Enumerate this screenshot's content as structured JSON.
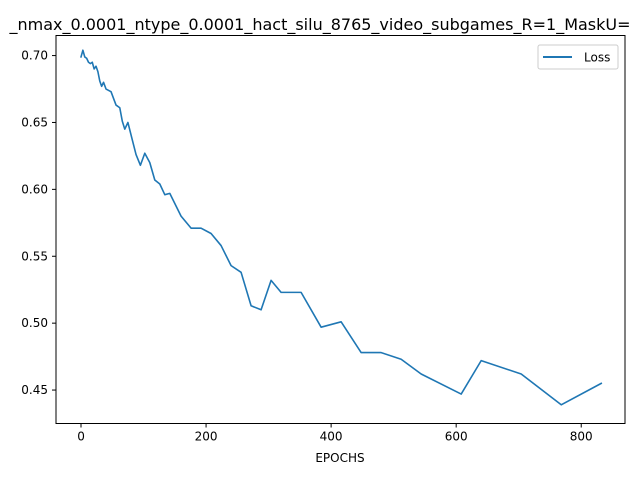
{
  "chart_data": {
    "type": "line",
    "title": "_nmax_0.0001_ntype_0.0001_hact_silu_8765_video_subgames_R=1_MaskU=",
    "xlabel": "EPOCHS",
    "ylabel": "",
    "xlim": [
      -40,
      870
    ],
    "ylim": [
      0.425,
      0.715
    ],
    "xticks": [
      0,
      200,
      400,
      600,
      800
    ],
    "yticks": [
      0.45,
      0.5,
      0.55,
      0.6,
      0.65,
      0.7
    ],
    "xtick_labels": [
      "0",
      "200",
      "400",
      "600",
      "800"
    ],
    "ytick_labels": [
      "0.45",
      "0.50",
      "0.55",
      "0.60",
      "0.65",
      "0.70"
    ],
    "grid": false,
    "legend_position": "top-right",
    "series": [
      {
        "name": "Loss",
        "color": "#1f77b4",
        "x": [
          0,
          3,
          6,
          9,
          12,
          15,
          18,
          21,
          24,
          27,
          30,
          33,
          36,
          40,
          48,
          56,
          62,
          66,
          70,
          75,
          82,
          88,
          95,
          102,
          110,
          118,
          126,
          134,
          142,
          160,
          176,
          192,
          208,
          224,
          240,
          256,
          272,
          288,
          304,
          320,
          352,
          384,
          416,
          448,
          480,
          512,
          544,
          608,
          640,
          704,
          768,
          832
        ],
        "values": [
          0.699,
          0.704,
          0.699,
          0.698,
          0.695,
          0.694,
          0.695,
          0.69,
          0.692,
          0.688,
          0.681,
          0.677,
          0.68,
          0.675,
          0.673,
          0.663,
          0.661,
          0.651,
          0.645,
          0.65,
          0.637,
          0.626,
          0.618,
          0.627,
          0.62,
          0.607,
          0.604,
          0.596,
          0.597,
          0.58,
          0.571,
          0.571,
          0.567,
          0.558,
          0.543,
          0.538,
          0.513,
          0.51,
          0.532,
          0.523,
          0.523,
          0.497,
          0.501,
          0.478,
          0.478,
          0.473,
          0.462,
          0.447,
          0.472,
          0.462,
          0.439,
          0.455
        ]
      }
    ]
  }
}
